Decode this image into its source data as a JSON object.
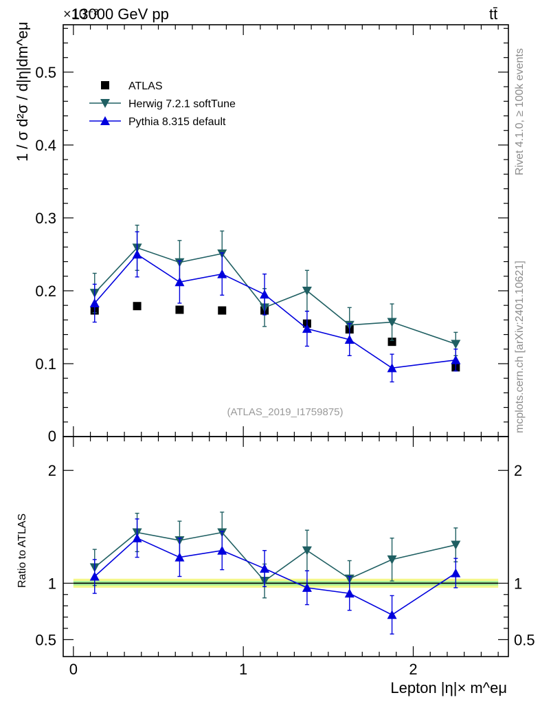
{
  "header": {
    "energy_label": "13000 GeV pp",
    "process_label": "tt̄",
    "exponent_label": "×10⁻³"
  },
  "side_labels": {
    "rivet": "Rivet 4.1.0, ≥ 100k events",
    "mcplots": "mcplots.cern.ch [arXiv:2401.10621]"
  },
  "chart_data": [
    {
      "panel": "main",
      "type": "scatter",
      "title": "",
      "xlabel": "Lepton |η|× m^eμ",
      "ylabel": "1 / σ  d²σ / d|η|dm^eμ",
      "y_exponent": "×10⁻³",
      "analysis_label": "(ATLAS_2019_I1759875)",
      "xlim": [
        -0.06,
        2.56
      ],
      "ylim": [
        0,
        0.565
      ],
      "y_ticks": [
        0.1,
        0.2,
        0.3,
        0.4,
        0.5
      ],
      "y_tick_labels": [
        "0.1",
        "0.2",
        "0.3",
        "0.4",
        "0.5"
      ],
      "y_zero_label": "0",
      "grid": false,
      "legend_position": "top-left",
      "x": [
        0.125,
        0.375,
        0.625,
        0.875,
        1.125,
        1.375,
        1.625,
        1.875,
        2.25
      ],
      "series": [
        {
          "name": "ATLAS",
          "marker": "square",
          "color": "#000000",
          "values": [
            0.173,
            0.179,
            0.174,
            0.173,
            0.173,
            0.155,
            0.147,
            0.13,
            0.095
          ]
        },
        {
          "name": "Herwig 7.2.1 softTune",
          "marker": "triangle-down",
          "color": "#1f5f62",
          "values": [
            0.197,
            0.259,
            0.239,
            0.251,
            0.177,
            0.2,
            0.153,
            0.157,
            0.127
          ],
          "errors": [
            0.027,
            0.031,
            0.03,
            0.031,
            0.026,
            0.028,
            0.024,
            0.025,
            0.016
          ]
        },
        {
          "name": "Pythia 8.315 default",
          "marker": "triangle-up",
          "color": "#0000dd",
          "values": [
            0.183,
            0.25,
            0.212,
            0.223,
            0.195,
            0.148,
            0.133,
            0.094,
            0.105
          ],
          "errors": [
            0.026,
            0.031,
            0.029,
            0.029,
            0.028,
            0.024,
            0.022,
            0.019,
            0.015
          ]
        }
      ]
    },
    {
      "panel": "ratio",
      "type": "scatter",
      "xlabel": "Lepton |η|× m^eμ",
      "ylabel": "Ratio to ATLAS",
      "xlim": [
        -0.06,
        2.56
      ],
      "ylim": [
        0.35,
        2.3
      ],
      "y_ticks": [
        0.5,
        1,
        2
      ],
      "y_tick_labels": [
        "0.5",
        "1",
        "2"
      ],
      "x_ticks": [
        0,
        1,
        2
      ],
      "x_tick_labels": [
        "0",
        "1",
        "2"
      ],
      "band_outer": [
        0.96,
        1.04
      ],
      "band_inner": [
        0.98,
        1.02
      ],
      "x": [
        0.125,
        0.375,
        0.625,
        0.875,
        1.125,
        1.375,
        1.625,
        1.875,
        2.25
      ],
      "series": [
        {
          "name": "Herwig 7.2.1 softTune",
          "marker": "triangle-down",
          "color": "#1f5f62",
          "values": [
            1.14,
            1.45,
            1.38,
            1.45,
            1.02,
            1.29,
            1.04,
            1.21,
            1.34
          ],
          "errors": [
            0.16,
            0.17,
            0.17,
            0.18,
            0.15,
            0.18,
            0.16,
            0.19,
            0.15
          ]
        },
        {
          "name": "Pythia 8.315 default",
          "marker": "triangle-up",
          "color": "#0000dd",
          "values": [
            1.06,
            1.4,
            1.23,
            1.29,
            1.13,
            0.96,
            0.91,
            0.72,
            1.09
          ],
          "errors": [
            0.15,
            0.17,
            0.17,
            0.17,
            0.16,
            0.15,
            0.15,
            0.17,
            0.13
          ]
        }
      ]
    }
  ]
}
